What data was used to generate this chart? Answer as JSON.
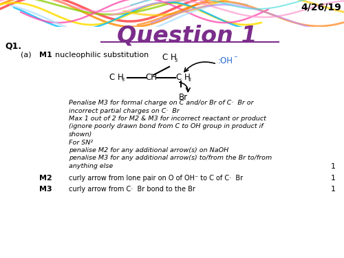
{
  "date": "4/26/19",
  "title": "Question 1",
  "q1_label": "Q1.",
  "part_a_label": "(a)",
  "m1_label": "M1",
  "m1_text": "nucleophilic substitution",
  "penalise_text_1": "Penalise M3 for formal charge on C and/or Br of C·  Br or",
  "penalise_text_2": "incorrect partial charges on C·  Br",
  "max_text_1": "Max 1 out of 2 for M2 & M3 for incorrect reactant or product",
  "max_text_2": "(ignore poorly drawn bond from C to OH group in product if",
  "max_text_3": "shown)",
  "sn_text": "For SN²",
  "pen_m2_text": "penalise M2 for any additional arrow(s) on NaOH",
  "pen_m3_text": "penalise M3 for any additional arrow(s) to/from the Br to/from",
  "pen_m3_text2": "anything else",
  "m2_label": "M2",
  "m2_text": "curly arrow from lone pair on O of OH⁻ to C of C·  Br",
  "m3_label": "M3",
  "m3_text": "curly arrow from C·  Br bond to the Br",
  "mark_1": "1",
  "background_color": "#ffffff",
  "title_color": "#7B2D8B",
  "swirl_colors": [
    "#FF4444",
    "#FF8800",
    "#FFDD00",
    "#88CC00",
    "#00BBFF",
    "#FF44AA",
    "#FF88CC",
    "#AADDFF"
  ],
  "swirl_colors2": [
    "#FFCC00",
    "#FF7700",
    "#FF99CC",
    "#BB88FF",
    "#44DDDD"
  ]
}
